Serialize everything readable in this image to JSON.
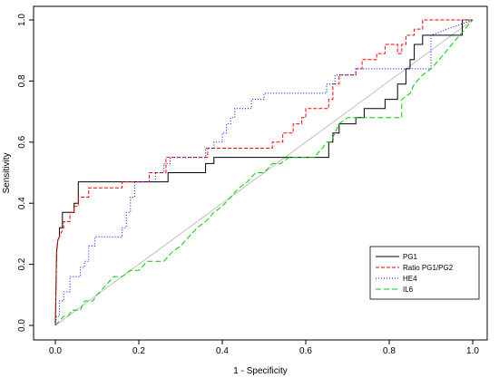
{
  "chart_data": {
    "type": "line",
    "xlabel": "1 - Specificity",
    "ylabel": "Sensitivity",
    "xlim": [
      0,
      1
    ],
    "ylim": [
      0,
      1
    ],
    "xticks": [
      "0.0",
      "0.2",
      "0.4",
      "0.6",
      "0.8",
      "1.0"
    ],
    "yticks": [
      "0.0",
      "0.2",
      "0.4",
      "0.6",
      "0.8",
      "1.0"
    ],
    "grid": false,
    "legend_position": "bottom-right",
    "reference_line": {
      "from": [
        0,
        0
      ],
      "to": [
        1,
        1
      ],
      "color": "#bebebe"
    },
    "series": [
      {
        "name": "PG1",
        "color": "#000000",
        "dash": "solid",
        "x": [
          0,
          0.003,
          0.006,
          0.01,
          0.01,
          0.017,
          0.017,
          0.025,
          0.045,
          0.045,
          0.055,
          0.055,
          0.27,
          0.27,
          0.36,
          0.36,
          0.38,
          0.38,
          0.655,
          0.655,
          0.665,
          0.665,
          0.68,
          0.68,
          0.72,
          0.72,
          0.74,
          0.74,
          0.79,
          0.79,
          0.82,
          0.82,
          0.84,
          0.84,
          0.85,
          0.85,
          0.86,
          0.86,
          0.88,
          0.88,
          0.91,
          0.91,
          0.975,
          0.975,
          1.0
        ],
        "y": [
          0,
          0.24,
          0.28,
          0.29,
          0.32,
          0.32,
          0.37,
          0.37,
          0.37,
          0.4,
          0.4,
          0.47,
          0.47,
          0.5,
          0.5,
          0.53,
          0.53,
          0.55,
          0.55,
          0.6,
          0.6,
          0.63,
          0.63,
          0.66,
          0.66,
          0.68,
          0.68,
          0.71,
          0.71,
          0.74,
          0.74,
          0.79,
          0.79,
          0.84,
          0.84,
          0.87,
          0.87,
          0.92,
          0.92,
          0.95,
          0.95,
          0.95,
          0.95,
          1.0,
          1.0
        ]
      },
      {
        "name": "Ratio PG1/PG2",
        "color": "#ff0000",
        "dash": "4,2",
        "x": [
          0,
          0.003,
          0.006,
          0.02,
          0.02,
          0.035,
          0.035,
          0.045,
          0.045,
          0.055,
          0.055,
          0.08,
          0.08,
          0.16,
          0.16,
          0.225,
          0.225,
          0.265,
          0.265,
          0.365,
          0.365,
          0.52,
          0.52,
          0.545,
          0.545,
          0.57,
          0.57,
          0.59,
          0.59,
          0.6,
          0.6,
          0.655,
          0.655,
          0.665,
          0.665,
          0.68,
          0.68,
          0.72,
          0.72,
          0.735,
          0.735,
          0.77,
          0.77,
          0.79,
          0.79,
          0.82,
          0.82,
          0.83,
          0.83,
          0.84,
          0.84,
          0.86,
          0.86,
          0.88,
          0.88,
          0.98,
          0.98,
          1.0
        ],
        "y": [
          0,
          0.25,
          0.28,
          0.32,
          0.34,
          0.34,
          0.37,
          0.37,
          0.39,
          0.39,
          0.42,
          0.42,
          0.45,
          0.45,
          0.47,
          0.47,
          0.5,
          0.5,
          0.55,
          0.55,
          0.58,
          0.58,
          0.6,
          0.6,
          0.63,
          0.63,
          0.66,
          0.66,
          0.68,
          0.68,
          0.71,
          0.71,
          0.74,
          0.74,
          0.79,
          0.79,
          0.82,
          0.82,
          0.84,
          0.84,
          0.87,
          0.87,
          0.89,
          0.89,
          0.92,
          0.92,
          0.89,
          0.89,
          0.92,
          0.92,
          0.95,
          0.95,
          0.97,
          0.97,
          1.0,
          1.0,
          1.0,
          1.0
        ]
      },
      {
        "name": "HE4",
        "color": "#0000ff",
        "dash": "1,2",
        "x": [
          0,
          0.003,
          0.01,
          0.01,
          0.02,
          0.02,
          0.035,
          0.035,
          0.06,
          0.06,
          0.07,
          0.07,
          0.08,
          0.08,
          0.095,
          0.095,
          0.16,
          0.16,
          0.17,
          0.17,
          0.18,
          0.18,
          0.19,
          0.19,
          0.24,
          0.24,
          0.26,
          0.26,
          0.275,
          0.275,
          0.36,
          0.36,
          0.38,
          0.38,
          0.4,
          0.4,
          0.41,
          0.41,
          0.42,
          0.42,
          0.43,
          0.43,
          0.47,
          0.47,
          0.5,
          0.5,
          0.51,
          0.51,
          0.65,
          0.65,
          0.67,
          0.67,
          0.72,
          0.72,
          0.77,
          0.77,
          0.8,
          0.8,
          0.9,
          0.9,
          1.0
        ],
        "y": [
          0,
          0.03,
          0.03,
          0.08,
          0.08,
          0.11,
          0.11,
          0.16,
          0.16,
          0.19,
          0.19,
          0.21,
          0.21,
          0.26,
          0.26,
          0.29,
          0.29,
          0.32,
          0.32,
          0.37,
          0.37,
          0.42,
          0.42,
          0.47,
          0.47,
          0.5,
          0.5,
          0.53,
          0.53,
          0.55,
          0.55,
          0.58,
          0.58,
          0.6,
          0.6,
          0.63,
          0.63,
          0.66,
          0.66,
          0.68,
          0.68,
          0.71,
          0.71,
          0.74,
          0.74,
          0.76,
          0.76,
          0.76,
          0.76,
          0.79,
          0.79,
          0.82,
          0.82,
          0.84,
          0.84,
          0.84,
          0.84,
          0.84,
          0.84,
          0.95,
          1.0
        ]
      },
      {
        "name": "IL6",
        "color": "#00cc00",
        "dash": "6,3",
        "x": [
          0,
          0.02,
          0.03,
          0.04,
          0.05,
          0.06,
          0.07,
          0.08,
          0.09,
          0.1,
          0.12,
          0.14,
          0.16,
          0.18,
          0.2,
          0.22,
          0.24,
          0.26,
          0.28,
          0.3,
          0.32,
          0.34,
          0.36,
          0.38,
          0.4,
          0.42,
          0.44,
          0.46,
          0.48,
          0.5,
          0.52,
          0.54,
          0.56,
          0.58,
          0.6,
          0.62,
          0.64,
          0.65,
          0.66,
          0.67,
          0.68,
          0.7,
          0.72,
          0.75,
          0.78,
          0.8,
          0.83,
          0.83,
          0.85,
          0.86,
          0.88,
          0.9,
          0.92,
          0.95,
          1.0
        ],
        "y": [
          0,
          0.03,
          0.03,
          0.05,
          0.05,
          0.05,
          0.08,
          0.08,
          0.08,
          0.1,
          0.13,
          0.16,
          0.16,
          0.18,
          0.18,
          0.21,
          0.21,
          0.21,
          0.24,
          0.26,
          0.29,
          0.32,
          0.34,
          0.37,
          0.39,
          0.42,
          0.45,
          0.47,
          0.5,
          0.5,
          0.53,
          0.53,
          0.55,
          0.55,
          0.55,
          0.55,
          0.58,
          0.6,
          0.6,
          0.63,
          0.66,
          0.68,
          0.68,
          0.68,
          0.68,
          0.68,
          0.68,
          0.74,
          0.76,
          0.79,
          0.82,
          0.84,
          0.87,
          0.92,
          1.0
        ]
      }
    ]
  }
}
